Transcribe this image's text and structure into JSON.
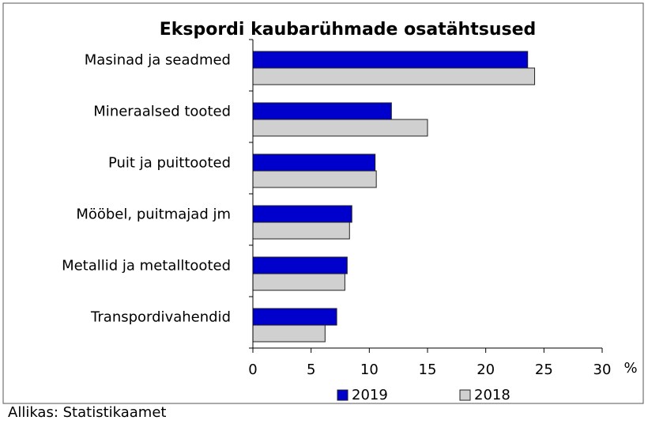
{
  "chart_data": {
    "type": "bar",
    "orientation": "horizontal",
    "title": "Ekspordi kaubarühmade osatähtsused",
    "categories": [
      "Masinad ja seadmed",
      "Mineraalsed tooted",
      "Puit ja puittooted",
      "Mööbel, puitmajad jm",
      "Metallid ja metalltooted",
      "Transpordivahendid"
    ],
    "series": [
      {
        "name": "2019",
        "color": "#0000cc",
        "values": [
          23.6,
          11.9,
          10.5,
          8.5,
          8.1,
          7.2
        ]
      },
      {
        "name": "2018",
        "color": "#d0d0d0",
        "values": [
          24.2,
          15.0,
          10.6,
          8.3,
          7.9,
          6.2
        ]
      }
    ],
    "x_label": "%",
    "xlim": [
      0,
      30
    ],
    "xticks": [
      0,
      5,
      10,
      15,
      20,
      25,
      30
    ],
    "legend": "bottom",
    "source": "Allikas: Statistikaamet"
  }
}
